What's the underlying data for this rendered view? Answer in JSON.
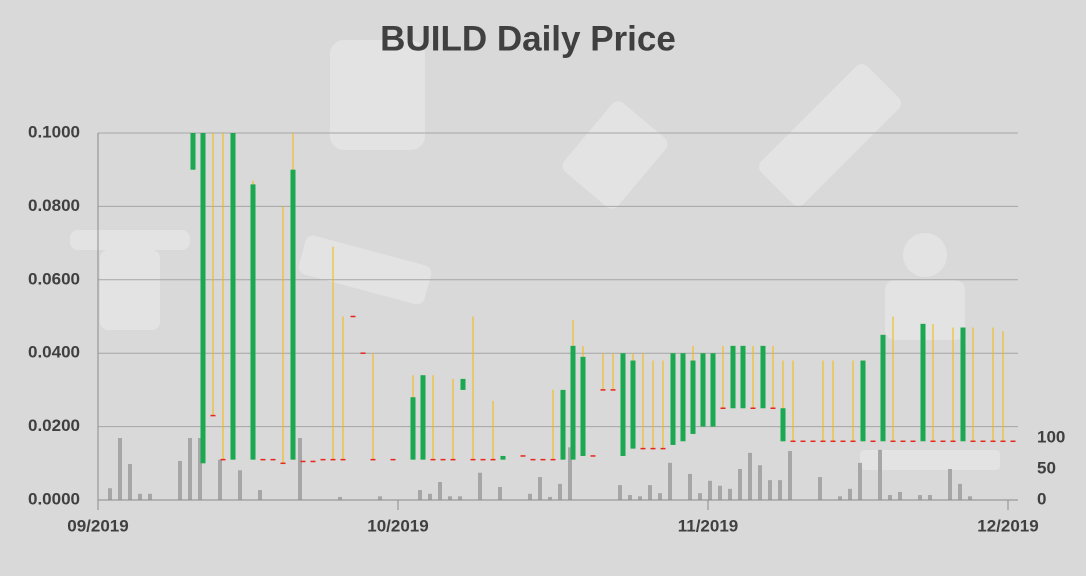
{
  "chart_data": {
    "type": "candlestick",
    "title": "BUILD Daily Price",
    "xlim": [
      0,
      92
    ],
    "xticks": [
      {
        "value": 0,
        "label": "09/2019"
      },
      {
        "value": 30,
        "label": "10/2019"
      },
      {
        "value": 61,
        "label": "11/2019"
      },
      {
        "value": 91,
        "label": "12/2019"
      }
    ],
    "ylim": [
      0,
      0.1
    ],
    "yticks": [
      {
        "value": 0,
        "label": "0.0000"
      },
      {
        "value": 0.02,
        "label": "0.0200"
      },
      {
        "value": 0.04,
        "label": "0.0400"
      },
      {
        "value": 0.06,
        "label": "0.0600"
      },
      {
        "value": 0.08,
        "label": "0.0800"
      },
      {
        "value": 0.1,
        "label": "0.1000"
      }
    ],
    "y2lim": [
      0,
      592
    ],
    "y2ticks": [
      0,
      50,
      100
    ],
    "grid": true,
    "colors": {
      "body": "#1aa851",
      "wick": "#f5b800",
      "doji": "#e8261c",
      "volume": "#a6a6a6"
    },
    "x": [
      9,
      10,
      11,
      12,
      13,
      15,
      16,
      17,
      18,
      19,
      20,
      21,
      22,
      23,
      24,
      25,
      26,
      27,
      29,
      31,
      32,
      33,
      34,
      35,
      36,
      37,
      38,
      39,
      40,
      42,
      43,
      44,
      45,
      46,
      47,
      48,
      49,
      50,
      51,
      52,
      53,
      54,
      55,
      56,
      57,
      58,
      59,
      60,
      61,
      62,
      63,
      64,
      65,
      66,
      67,
      68,
      69,
      70,
      71,
      72,
      73,
      74,
      75,
      76,
      77,
      78,
      79,
      80,
      81,
      82,
      83,
      84,
      85,
      86,
      87,
      88,
      89,
      90,
      91
    ],
    "open": [
      0.09,
      0.01,
      0.023,
      0.011,
      0.011,
      0.011,
      0.011,
      0.011,
      0.01,
      0.011,
      0.0105,
      0.0105,
      0.011,
      0.011,
      0.011,
      0.05,
      0.04,
      0.011,
      0.011,
      0.011,
      0.011,
      0.011,
      0.011,
      0.011,
      0.03,
      0.011,
      0.011,
      0.011,
      0.011,
      0.012,
      0.011,
      0.011,
      0.011,
      0.011,
      0.011,
      0.012,
      0.012,
      0.03,
      0.03,
      0.012,
      0.014,
      0.014,
      0.014,
      0.014,
      0.015,
      0.016,
      0.018,
      0.02,
      0.02,
      0.025,
      0.025,
      0.025,
      0.025,
      0.025,
      0.025,
      0.016,
      0.016,
      0.016,
      0.016,
      0.016,
      0.016,
      0.016,
      0.016,
      0.016,
      0.016,
      0.016,
      0.016,
      0.016,
      0.016,
      0.016,
      0.016,
      0.016,
      0.016,
      0.016,
      0.016,
      0.016,
      0.016,
      0.016,
      0.016
    ],
    "high": [
      0.1,
      0.1,
      0.1,
      0.1,
      0.1,
      0.087,
      0.011,
      0.011,
      0.08,
      0.1,
      0.0105,
      0.0105,
      0.011,
      0.069,
      0.05,
      0.05,
      0.04,
      0.04,
      0.011,
      0.034,
      0.034,
      0.034,
      0.011,
      0.033,
      0.033,
      0.05,
      0.011,
      0.027,
      0.012,
      0.012,
      0.011,
      0.011,
      0.03,
      0.03,
      0.049,
      0.042,
      0.012,
      0.04,
      0.04,
      0.04,
      0.04,
      0.04,
      0.038,
      0.038,
      0.04,
      0.04,
      0.042,
      0.04,
      0.04,
      0.042,
      0.042,
      0.042,
      0.042,
      0.042,
      0.042,
      0.038,
      0.038,
      0.016,
      0.016,
      0.038,
      0.038,
      0.016,
      0.038,
      0.038,
      0.016,
      0.045,
      0.05,
      0.016,
      0.016,
      0.048,
      0.048,
      0.016,
      0.047,
      0.047,
      0.047,
      0.016,
      0.047,
      0.046,
      0.016
    ],
    "low": [
      0.09,
      0.01,
      0.023,
      0.011,
      0.011,
      0.011,
      0.011,
      0.011,
      0.01,
      0.011,
      0.0105,
      0.0105,
      0.011,
      0.011,
      0.011,
      0.05,
      0.04,
      0.011,
      0.011,
      0.011,
      0.011,
      0.011,
      0.011,
      0.011,
      0.03,
      0.011,
      0.011,
      0.011,
      0.011,
      0.012,
      0.011,
      0.011,
      0.011,
      0.011,
      0.011,
      0.012,
      0.012,
      0.03,
      0.03,
      0.012,
      0.014,
      0.014,
      0.014,
      0.014,
      0.015,
      0.016,
      0.018,
      0.02,
      0.02,
      0.025,
      0.025,
      0.025,
      0.025,
      0.025,
      0.025,
      0.016,
      0.016,
      0.016,
      0.016,
      0.016,
      0.016,
      0.016,
      0.016,
      0.016,
      0.016,
      0.016,
      0.016,
      0.016,
      0.016,
      0.016,
      0.016,
      0.016,
      0.016,
      0.016,
      0.016,
      0.016,
      0.016,
      0.016,
      0.016
    ],
    "close": [
      0.1,
      0.1,
      0.023,
      0.011,
      0.1,
      0.086,
      0.011,
      0.011,
      0.01,
      0.09,
      0.0105,
      0.0105,
      0.011,
      0.011,
      0.011,
      0.05,
      0.04,
      0.011,
      0.011,
      0.028,
      0.034,
      0.011,
      0.011,
      0.011,
      0.033,
      0.011,
      0.011,
      0.011,
      0.012,
      0.012,
      0.011,
      0.011,
      0.011,
      0.03,
      0.042,
      0.039,
      0.012,
      0.03,
      0.03,
      0.04,
      0.038,
      0.014,
      0.014,
      0.014,
      0.04,
      0.04,
      0.038,
      0.04,
      0.04,
      0.025,
      0.042,
      0.042,
      0.025,
      0.042,
      0.025,
      0.025,
      0.016,
      0.016,
      0.016,
      0.016,
      0.016,
      0.016,
      0.016,
      0.038,
      0.016,
      0.045,
      0.016,
      0.016,
      0.016,
      0.048,
      0.016,
      0.016,
      0.016,
      0.047,
      0.016,
      0.016,
      0.016,
      0.016,
      0.016
    ],
    "volume": {
      "x": [
        1,
        2,
        3,
        4,
        5,
        8,
        9,
        10,
        12,
        14,
        16,
        20,
        24,
        28,
        32,
        33,
        34,
        35,
        36,
        38,
        40,
        43,
        44,
        45,
        46,
        47,
        52,
        53,
        54,
        55,
        56,
        57,
        59,
        60,
        61,
        62,
        63,
        64,
        65,
        66,
        67,
        68,
        69,
        72,
        74,
        75,
        76,
        78,
        79,
        80,
        82,
        83,
        85,
        86,
        87
      ],
      "values": [
        19,
        100,
        58,
        10,
        10,
        63,
        100,
        100,
        65,
        48,
        16,
        100,
        5,
        6,
        16,
        10,
        29,
        6,
        6,
        44,
        21,
        10,
        37,
        5,
        26,
        85,
        24,
        8,
        6,
        24,
        11,
        60,
        42,
        11,
        31,
        23,
        18,
        50,
        76,
        56,
        32,
        32,
        79,
        37,
        6,
        18,
        60,
        81,
        8,
        13,
        8,
        8,
        50,
        26,
        6
      ]
    }
  }
}
